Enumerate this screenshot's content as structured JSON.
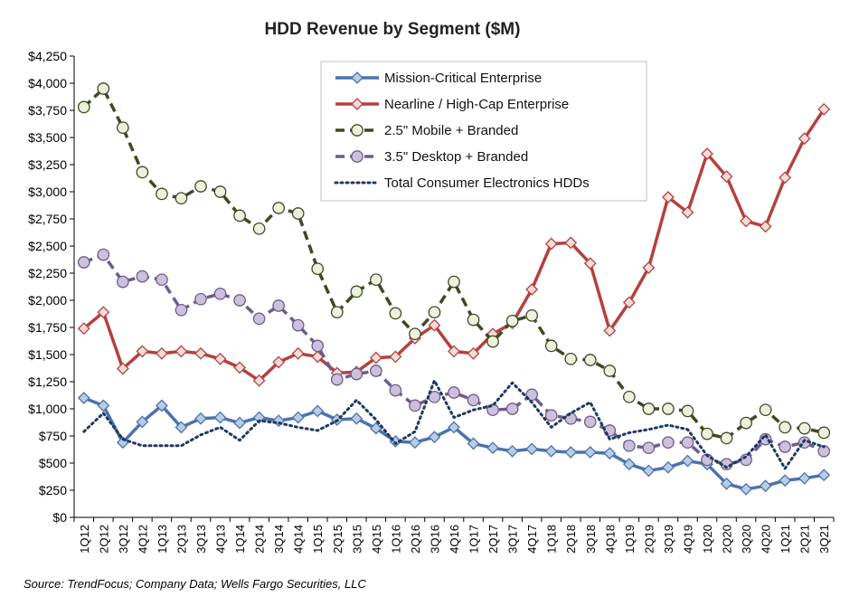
{
  "chart_data": {
    "type": "line",
    "title": "HDD Revenue by Segment ($M)",
    "xlabel": "",
    "ylabel": "",
    "ylim": [
      0,
      4250
    ],
    "ytick_step": 250,
    "ytick_labels": [
      "$0",
      "$250",
      "$500",
      "$750",
      "$1,000",
      "$1,250",
      "$1,500",
      "$1,750",
      "$2,000",
      "$2,250",
      "$2,500",
      "$2,750",
      "$3,000",
      "$3,250",
      "$3,500",
      "$3,750",
      "$4,000",
      "$4,250"
    ],
    "grid": false,
    "legend_placement": "top-center",
    "categories": [
      "1Q12",
      "2Q12",
      "3Q12",
      "4Q12",
      "1Q13",
      "2Q13",
      "3Q13",
      "4Q13",
      "1Q14",
      "2Q14",
      "3Q14",
      "4Q14",
      "1Q15",
      "2Q15",
      "3Q15",
      "4Q15",
      "1Q16",
      "2Q16",
      "3Q16",
      "4Q16",
      "1Q17",
      "2Q17",
      "3Q17",
      "4Q17",
      "1Q18",
      "2Q18",
      "3Q18",
      "4Q18",
      "1Q19",
      "2Q19",
      "3Q19",
      "4Q19",
      "1Q20",
      "2Q20",
      "3Q20",
      "4Q20",
      "1Q21",
      "2Q21",
      "3Q21"
    ],
    "series": [
      {
        "name": "Mission-Critical Enterprise",
        "color": "#4a72b0",
        "style": "solid",
        "marker": "diamond",
        "marker_fill": "#b8cce4",
        "values": [
          1100,
          1030,
          690,
          880,
          1030,
          830,
          910,
          920,
          870,
          920,
          890,
          920,
          980,
          900,
          910,
          820,
          700,
          690,
          740,
          830,
          680,
          640,
          610,
          630,
          610,
          600,
          600,
          590,
          490,
          430,
          460,
          520,
          490,
          310,
          260,
          290,
          340,
          360,
          390
        ]
      },
      {
        "name": "Nearline / High-Cap Enterprise",
        "color": "#b5403d",
        "style": "solid",
        "marker": "diamond",
        "marker_fill": "#f2dcdb",
        "values": [
          1740,
          1890,
          1370,
          1530,
          1510,
          1530,
          1510,
          1460,
          1380,
          1260,
          1430,
          1510,
          1480,
          1330,
          1340,
          1470,
          1480,
          1650,
          1770,
          1530,
          1510,
          1690,
          1790,
          2100,
          2520,
          2530,
          2340,
          1720,
          1980,
          2300,
          2950,
          2810,
          3350,
          3140,
          2730,
          2680,
          3130,
          3490,
          3760
        ]
      },
      {
        "name": "2.5\" Mobile + Branded",
        "color": "#3e4a22",
        "style": "dashed",
        "marker": "circle",
        "marker_fill": "#ebf1dd",
        "values": [
          3780,
          3950,
          3590,
          3180,
          2980,
          2940,
          3050,
          3000,
          2780,
          2660,
          2850,
          2800,
          2290,
          1890,
          2080,
          2190,
          1880,
          1690,
          1890,
          2170,
          1820,
          1620,
          1810,
          1860,
          1580,
          1460,
          1450,
          1350,
          1110,
          1000,
          1000,
          980,
          770,
          730,
          870,
          990,
          830,
          820,
          780
        ]
      },
      {
        "name": "3.5\" Desktop + Branded",
        "color": "#6e5b91",
        "style": "dashed",
        "marker": "circle",
        "marker_fill": "#ccc0da",
        "values": [
          2350,
          2420,
          2170,
          2220,
          2190,
          1910,
          2010,
          2060,
          2000,
          1830,
          1950,
          1770,
          1580,
          1270,
          1320,
          1350,
          1170,
          1030,
          1110,
          1150,
          1080,
          990,
          1000,
          1130,
          940,
          910,
          880,
          800,
          660,
          640,
          690,
          690,
          530,
          490,
          530,
          720,
          650,
          690,
          610
        ]
      },
      {
        "name": "Total Consumer Electronics HDDs",
        "color": "#1f3864",
        "style": "dotted",
        "marker": "none",
        "values": [
          790,
          960,
          720,
          660,
          660,
          660,
          760,
          830,
          710,
          890,
          870,
          830,
          800,
          890,
          1080,
          900,
          680,
          790,
          1260,
          920,
          990,
          1030,
          1240,
          1060,
          830,
          960,
          1060,
          720,
          780,
          810,
          850,
          810,
          570,
          460,
          560,
          760,
          450,
          710,
          650
        ]
      }
    ]
  },
  "source": "Source:  TrendFocus; Company Data; Wells Fargo Securities, LLC"
}
